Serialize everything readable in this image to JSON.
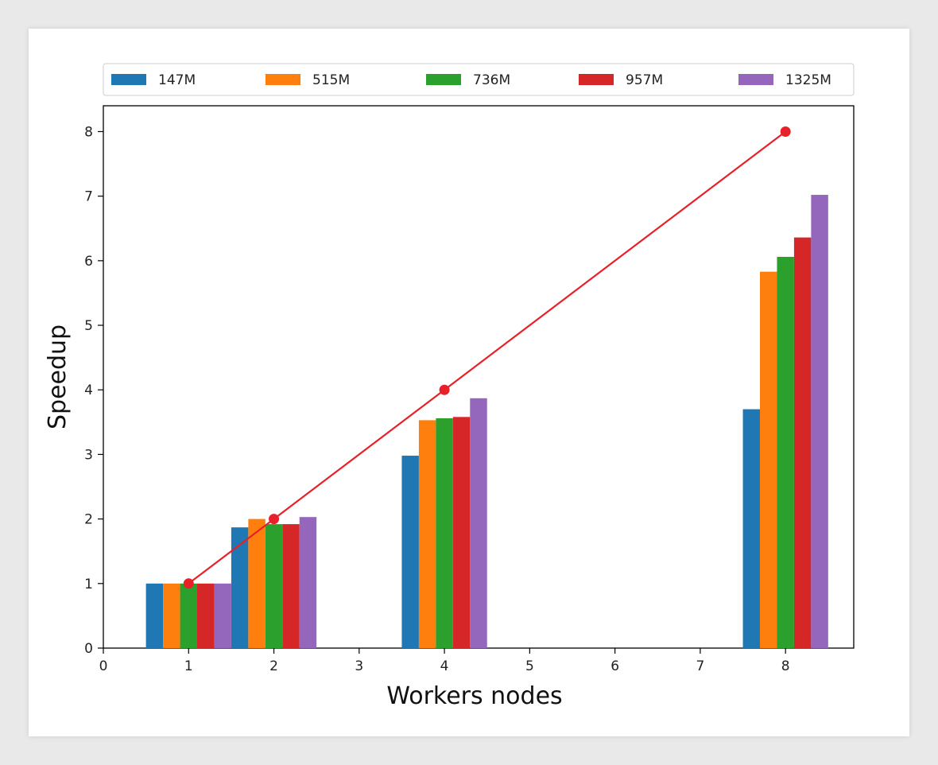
{
  "chart_data": {
    "type": "bar",
    "title": "",
    "xlabel": "Workers nodes",
    "ylabel": "Speedup",
    "x": [
      1,
      2,
      4,
      8
    ],
    "xlim": [
      0,
      8.8
    ],
    "ylim": [
      0,
      8.4
    ],
    "xticks": [
      "0",
      "1",
      "2",
      "3",
      "4",
      "5",
      "6",
      "7",
      "8"
    ],
    "yticks": [
      "0",
      "1",
      "2",
      "3",
      "4",
      "5",
      "6",
      "7",
      "8"
    ],
    "grid": false,
    "legend": "top, horizontal",
    "series": [
      {
        "name": "147M",
        "color": "#1f77b4",
        "values": [
          1.0,
          1.87,
          2.98,
          3.7
        ]
      },
      {
        "name": "515M",
        "color": "#ff7f0e",
        "values": [
          1.0,
          2.0,
          3.53,
          5.83
        ]
      },
      {
        "name": "736M",
        "color": "#2ca02c",
        "values": [
          1.0,
          1.92,
          3.56,
          6.06
        ]
      },
      {
        "name": "957M",
        "color": "#d62728",
        "values": [
          1.0,
          1.92,
          3.58,
          6.36
        ]
      },
      {
        "name": "1325M",
        "color": "#9467bd",
        "values": [
          1.0,
          2.03,
          3.87,
          7.02
        ]
      }
    ],
    "ideal_line": {
      "color": "#e8202a",
      "x": [
        1,
        2,
        4,
        8
      ],
      "y": [
        1,
        2,
        4,
        8
      ]
    }
  }
}
